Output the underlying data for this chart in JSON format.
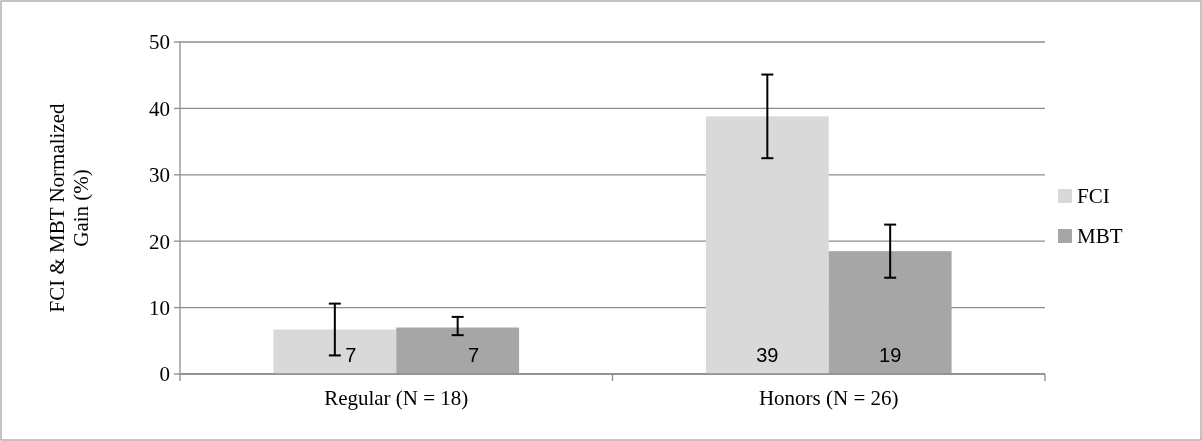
{
  "chart_data": {
    "type": "bar",
    "ylabel": "FCI & MBT Normalized Gain (%)",
    "categories": [
      "Regular (N = 18)",
      "Honors (N = 26)"
    ],
    "series": [
      {
        "name": "FCI",
        "color": "#d9d9d9",
        "values": [
          6.7,
          38.8
        ],
        "value_labels": [
          "7",
          "39"
        ],
        "errors": [
          [
            2.8,
            10.6
          ],
          [
            32.5,
            45.1
          ]
        ]
      },
      {
        "name": "MBT",
        "color": "#a6a6a6",
        "values": [
          7.0,
          18.5
        ],
        "value_labels": [
          "7",
          "19"
        ],
        "errors": [
          [
            5.85,
            8.6
          ],
          [
            14.5,
            22.5
          ]
        ]
      }
    ],
    "ylim": [
      0,
      50
    ],
    "yticks": [
      0,
      10,
      20,
      30,
      40,
      50
    ],
    "grid": "y",
    "legend": "right"
  }
}
